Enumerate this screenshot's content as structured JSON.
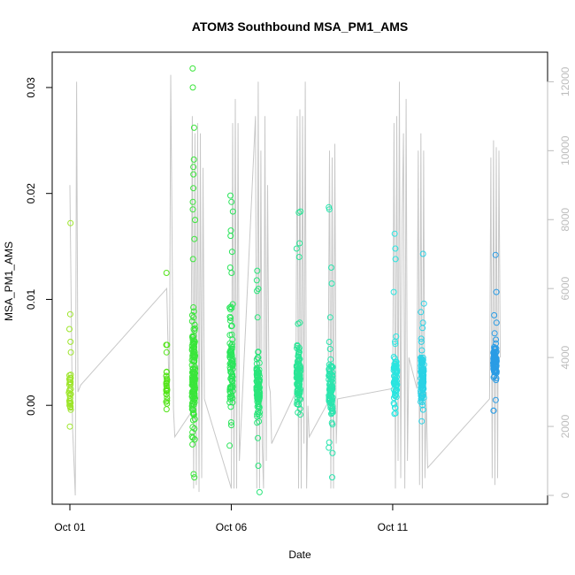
{
  "chart_data": {
    "type": "scatter",
    "title": "ATOM3 Southbound MSA_PM1_AMS",
    "xlabel": "Date",
    "ylabel": "MSA_PM1_AMS",
    "x_axis": {
      "type": "date",
      "range": [
        "2016-09-30T18:00",
        "2016-10-15T12:00"
      ],
      "ticks": [
        {
          "date": "2016-10-01",
          "label": "Oct 01"
        },
        {
          "date": "2016-10-06",
          "label": "Oct 06"
        },
        {
          "date": "2016-10-11",
          "label": "Oct 11"
        }
      ]
    },
    "y_axis_left": {
      "range": [
        -0.0085,
        0.0325
      ],
      "ticks": [
        0.0,
        0.01,
        0.02,
        0.03
      ],
      "tick_labels": [
        "0.00",
        "0.01",
        "0.02",
        "0.03"
      ]
    },
    "y_axis_right": {
      "range": [
        0,
        12600
      ],
      "ticks": [
        0,
        2000,
        4000,
        6000,
        8000,
        10000,
        12000
      ],
      "tick_labels": [
        "0",
        "2000",
        "4000",
        "6000",
        "8000",
        "10000",
        "12000"
      ],
      "color": "#bdbdbd",
      "note": "secondary gray trace (altitude-like profile)"
    },
    "grid": false,
    "legend": "none",
    "colors": {
      "gray_trace": "#c8c8c8",
      "axis": "#000000",
      "right_axis": "#bdbdbd"
    },
    "gray_trace": [
      [
        "2016-10-01T00:00",
        9000
      ],
      [
        "2016-10-01T02:00",
        2000
      ],
      [
        "2016-10-01T04:00",
        0
      ],
      [
        "2016-10-01T05:00",
        12000
      ],
      [
        "2016-10-01T06:00",
        3000
      ],
      [
        "2016-10-01T08:00",
        3200
      ],
      [
        "2016-10-04T00:00",
        6000
      ],
      [
        "2016-10-04T02:00",
        2600
      ],
      [
        "2016-10-04T03:00",
        12200
      ],
      [
        "2016-10-04T05:00",
        2500
      ],
      [
        "2016-10-04T06:00",
        1700
      ],
      [
        "2016-10-04T18:00",
        2400
      ],
      [
        "2016-10-04T19:00",
        11000
      ],
      [
        "2016-10-04T20:00",
        200
      ],
      [
        "2016-10-04T21:00",
        10500
      ],
      [
        "2016-10-04T22:00",
        300
      ],
      [
        "2016-10-04T23:00",
        10800
      ],
      [
        "2016-10-05T00:00",
        100
      ],
      [
        "2016-10-05T01:00",
        10500
      ],
      [
        "2016-10-05T02:00",
        500
      ],
      [
        "2016-10-05T03:00",
        9500
      ],
      [
        "2016-10-05T04:00",
        2800
      ],
      [
        "2016-10-06T00:00",
        200
      ],
      [
        "2016-10-06T01:00",
        10800
      ],
      [
        "2016-10-06T02:00",
        200
      ],
      [
        "2016-10-06T03:00",
        11500
      ],
      [
        "2016-10-06T04:00",
        200
      ],
      [
        "2016-10-06T05:00",
        10800
      ],
      [
        "2016-10-06T06:00",
        1000
      ],
      [
        "2016-10-06T18:00",
        11000
      ],
      [
        "2016-10-06T19:00",
        200
      ],
      [
        "2016-10-06T20:00",
        12000
      ],
      [
        "2016-10-06T21:00",
        200
      ],
      [
        "2016-10-06T22:00",
        10000
      ],
      [
        "2016-10-06T23:00",
        1500
      ],
      [
        "2016-10-07T00:00",
        200
      ],
      [
        "2016-10-07T01:00",
        11000
      ],
      [
        "2016-10-07T02:00",
        1000
      ],
      [
        "2016-10-07T03:00",
        9000
      ],
      [
        "2016-10-07T04:00",
        3200
      ],
      [
        "2016-10-07T05:00",
        3000
      ],
      [
        "2016-10-07T06:00",
        1500
      ],
      [
        "2016-10-08T00:00",
        3000
      ],
      [
        "2016-10-08T01:00",
        11000
      ],
      [
        "2016-10-08T02:00",
        200
      ],
      [
        "2016-10-08T03:00",
        11200
      ],
      [
        "2016-10-08T04:00",
        200
      ],
      [
        "2016-10-08T05:00",
        11000
      ],
      [
        "2016-10-08T06:00",
        1500
      ],
      [
        "2016-10-08T07:00",
        12000
      ],
      [
        "2016-10-08T08:00",
        200
      ],
      [
        "2016-10-08T09:00",
        2600
      ],
      [
        "2016-10-08T10:00",
        1700
      ],
      [
        "2016-10-09T00:00",
        2700
      ],
      [
        "2016-10-09T01:00",
        10000
      ],
      [
        "2016-10-09T02:00",
        200
      ],
      [
        "2016-10-09T03:00",
        9800
      ],
      [
        "2016-10-09T04:00",
        200
      ],
      [
        "2016-10-09T05:00",
        10200
      ],
      [
        "2016-10-09T06:00",
        1500
      ],
      [
        "2016-10-09T07:00",
        2800
      ],
      [
        "2016-10-11T00:00",
        3100
      ],
      [
        "2016-10-11T01:00",
        10800
      ],
      [
        "2016-10-11T02:00",
        200
      ],
      [
        "2016-10-11T03:00",
        11000
      ],
      [
        "2016-10-11T04:00",
        1000
      ],
      [
        "2016-10-11T05:00",
        12000
      ],
      [
        "2016-10-11T06:00",
        500
      ],
      [
        "2016-10-11T07:00",
        8000
      ],
      [
        "2016-10-11T08:00",
        10500
      ],
      [
        "2016-10-11T09:00",
        200
      ],
      [
        "2016-10-11T10:00",
        11500
      ],
      [
        "2016-10-11T11:00",
        1000
      ],
      [
        "2016-10-11T12:00",
        4000
      ],
      [
        "2016-10-11T18:00",
        3100
      ],
      [
        "2016-10-11T19:00",
        10000
      ],
      [
        "2016-10-11T20:00",
        300
      ],
      [
        "2016-10-11T21:00",
        10500
      ],
      [
        "2016-10-11T22:00",
        200
      ],
      [
        "2016-10-11T23:00",
        10000
      ],
      [
        "2016-10-12T00:00",
        500
      ],
      [
        "2016-10-12T01:00",
        3000
      ],
      [
        "2016-10-12T02:00",
        800
      ],
      [
        "2016-10-14T00:00",
        2800
      ],
      [
        "2016-10-14T01:00",
        9800
      ],
      [
        "2016-10-14T02:00",
        500
      ],
      [
        "2016-10-14T03:00",
        10300
      ],
      [
        "2016-10-14T04:00",
        300
      ],
      [
        "2016-10-14T05:00",
        10100
      ],
      [
        "2016-10-14T06:00",
        500
      ],
      [
        "2016-10-14T07:00",
        10000
      ],
      [
        "2016-10-14T08:00",
        4000
      ]
    ],
    "clusters": [
      {
        "date": "2016-10-01T00:00",
        "x_spread_hours": 1.5,
        "center": 0.0015,
        "sd": 0.0018,
        "count": 30,
        "color": "#9de52a",
        "outliers": [
          0.0172,
          0.0086,
          0.0072,
          0.006,
          0.005,
          -0.002
        ]
      },
      {
        "date": "2016-10-04T00:00",
        "x_spread_hours": 0.8,
        "center": 0.0018,
        "sd": 0.0015,
        "count": 25,
        "color": "#54e41a",
        "outliers": [
          0.0125,
          0.0057,
          0.0057,
          0.005
        ]
      },
      {
        "date": "2016-10-04T20:00",
        "x_spread_hours": 2.5,
        "center": 0.0025,
        "sd": 0.0045,
        "count": 130,
        "color": "#3ae53a",
        "outliers": [
          0.0318,
          0.03,
          0.0262,
          0.0232,
          0.0225,
          0.0218,
          0.0205,
          0.0192,
          0.0185,
          0.0175,
          0.0157,
          0.0138,
          0.0085,
          0.0058,
          0.005,
          -0.0065,
          -0.0068
        ]
      },
      {
        "date": "2016-10-06T00:00",
        "x_spread_hours": 2.5,
        "center": 0.0035,
        "sd": 0.0035,
        "count": 80,
        "color": "#2ae55a",
        "outliers": [
          0.0198,
          0.0192,
          0.0183,
          0.0165,
          0.016,
          0.0145,
          0.013,
          0.0125,
          0.0093,
          0.0092,
          0.008
        ]
      },
      {
        "date": "2016-10-06T20:00",
        "x_spread_hours": 2.5,
        "center": 0.002,
        "sd": 0.0025,
        "count": 100,
        "color": "#2ae57a",
        "outliers": [
          0.0127,
          0.0118,
          0.011,
          0.0108,
          0.0083,
          -0.0082,
          -0.0057
        ]
      },
      {
        "date": "2016-10-08T02:00",
        "x_spread_hours": 3,
        "center": 0.0025,
        "sd": 0.0022,
        "count": 90,
        "color": "#2ae596",
        "outliers": [
          0.0183,
          0.0182,
          0.0153,
          0.0148,
          0.014,
          0.0078,
          0.0077
        ]
      },
      {
        "date": "2016-10-09T02:00",
        "x_spread_hours": 3,
        "center": 0.0015,
        "sd": 0.0025,
        "count": 80,
        "color": "#2ae5ae",
        "outliers": [
          0.0187,
          0.0185,
          0.013,
          0.0115,
          0.0083,
          -0.0035,
          -0.004,
          -0.0045,
          -0.0068
        ]
      },
      {
        "date": "2016-10-11T02:00",
        "x_spread_hours": 2.5,
        "center": 0.0025,
        "sd": 0.0018,
        "count": 70,
        "color": "#2ae5e0",
        "outliers": [
          0.0162,
          0.0148,
          0.0138,
          0.0107,
          0.0065,
          0.006,
          0.0058,
          -0.0008
        ]
      },
      {
        "date": "2016-10-11T22:00",
        "x_spread_hours": 2.5,
        "center": 0.0025,
        "sd": 0.002,
        "count": 90,
        "color": "#2ad2e5",
        "outliers": [
          0.0143,
          0.0096,
          0.0088,
          0.0078,
          0.0073,
          0.006,
          -0.0015
        ]
      },
      {
        "date": "2016-10-14T04:00",
        "x_spread_hours": 2.5,
        "center": 0.004,
        "sd": 0.0012,
        "count": 100,
        "color": "#2a9ce5",
        "outliers": [
          0.0142,
          0.0107,
          0.0085,
          0.0078,
          0.0068,
          0.0062,
          -0.0005,
          -0.0005,
          0.0005
        ]
      }
    ]
  }
}
